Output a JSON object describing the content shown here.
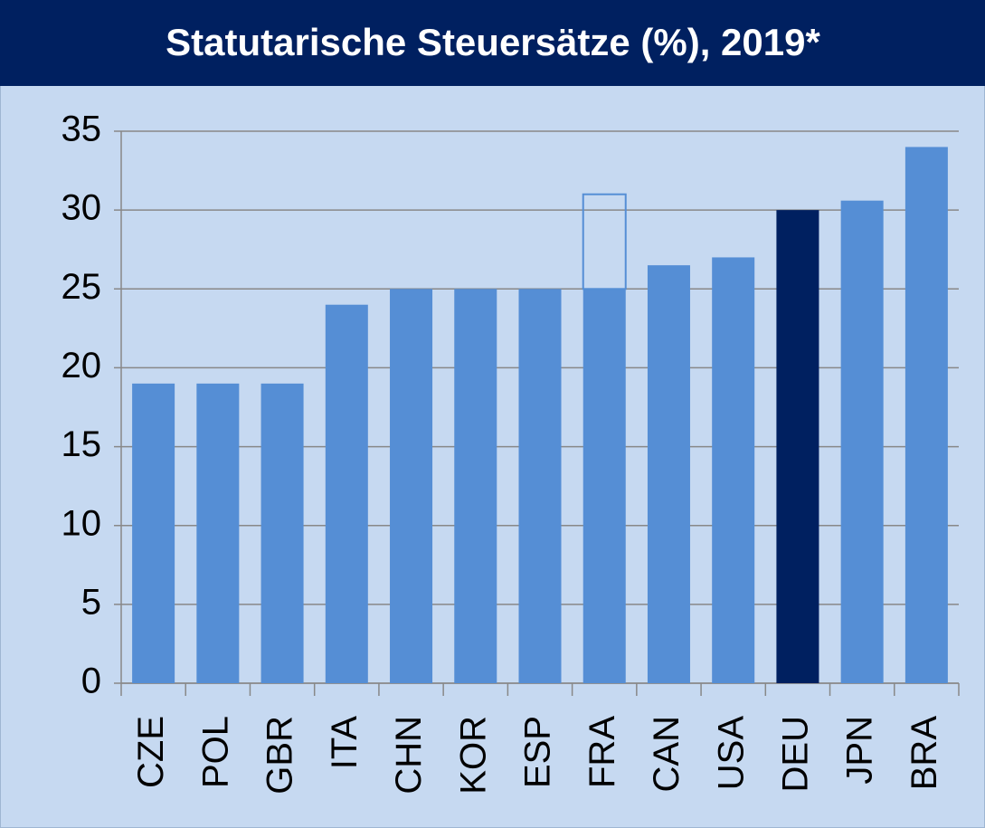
{
  "chart_data": {
    "type": "bar",
    "title": "Statutarische Steuersätze (%), 2019*",
    "categories": [
      "CZE",
      "POL",
      "GBR",
      "ITA",
      "CHN",
      "KOR",
      "ESP",
      "FRA",
      "CAN",
      "USA",
      "DEU",
      "JPN",
      "BRA"
    ],
    "values": [
      19,
      19,
      19,
      24,
      25,
      25,
      25,
      25,
      26.5,
      27,
      30,
      30.6,
      34
    ],
    "outline_values": [
      null,
      null,
      null,
      null,
      null,
      null,
      null,
      6,
      null,
      null,
      null,
      null,
      null
    ],
    "colors": [
      "#558ed5",
      "#558ed5",
      "#558ed5",
      "#558ed5",
      "#558ed5",
      "#558ed5",
      "#558ed5",
      "#558ed5",
      "#558ed5",
      "#558ed5",
      "#002060",
      "#558ed5",
      "#558ed5"
    ],
    "ylim": [
      0,
      35
    ],
    "yticks": [
      0,
      5,
      10,
      15,
      20,
      25,
      30,
      35
    ],
    "grid": true
  }
}
